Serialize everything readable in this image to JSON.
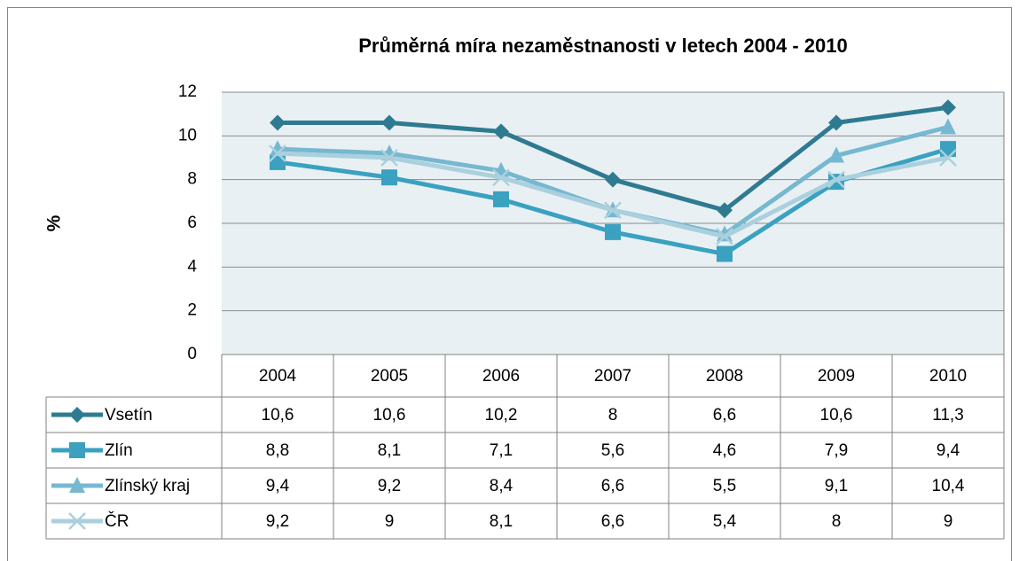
{
  "chart_data": {
    "type": "line",
    "title": "Průměrná míra nezaměstnanosti v letech 2004 - 2010",
    "y_label": "%",
    "categories": [
      "2004",
      "2005",
      "2006",
      "2007",
      "2008",
      "2009",
      "2010"
    ],
    "series": [
      {
        "name": "Vsetín",
        "color": "#2e7b91",
        "marker": "diamond",
        "values": [
          10.6,
          10.6,
          10.2,
          8,
          6.6,
          10.6,
          11.3
        ],
        "value_labels": [
          "10,6",
          "10,6",
          "10,2",
          "8",
          "6,6",
          "10,6",
          "11,3"
        ]
      },
      {
        "name": "Zlín",
        "color": "#3aa1c0",
        "marker": "square",
        "values": [
          8.8,
          8.1,
          7.1,
          5.6,
          4.6,
          7.9,
          9.4
        ],
        "value_labels": [
          "8,8",
          "8,1",
          "7,1",
          "5,6",
          "4,6",
          "7,9",
          "9,4"
        ]
      },
      {
        "name": "Zlínský kraj",
        "color": "#76b8d0",
        "marker": "triangle",
        "values": [
          9.4,
          9.2,
          8.4,
          6.6,
          5.5,
          9.1,
          10.4
        ],
        "value_labels": [
          "9,4",
          "9,2",
          "8,4",
          "6,6",
          "5,5",
          "9,1",
          "10,4"
        ]
      },
      {
        "name": "ČR",
        "color": "#abd0dd",
        "marker": "x",
        "values": [
          9.2,
          9,
          8.1,
          6.6,
          5.4,
          8,
          9
        ],
        "value_labels": [
          "9,2",
          "9",
          "8,1",
          "6,6",
          "5,4",
          "8",
          "9"
        ]
      }
    ],
    "ylim": [
      0,
      12
    ],
    "yticks": [
      0,
      2,
      4,
      6,
      8,
      10,
      12
    ],
    "grid": true
  }
}
